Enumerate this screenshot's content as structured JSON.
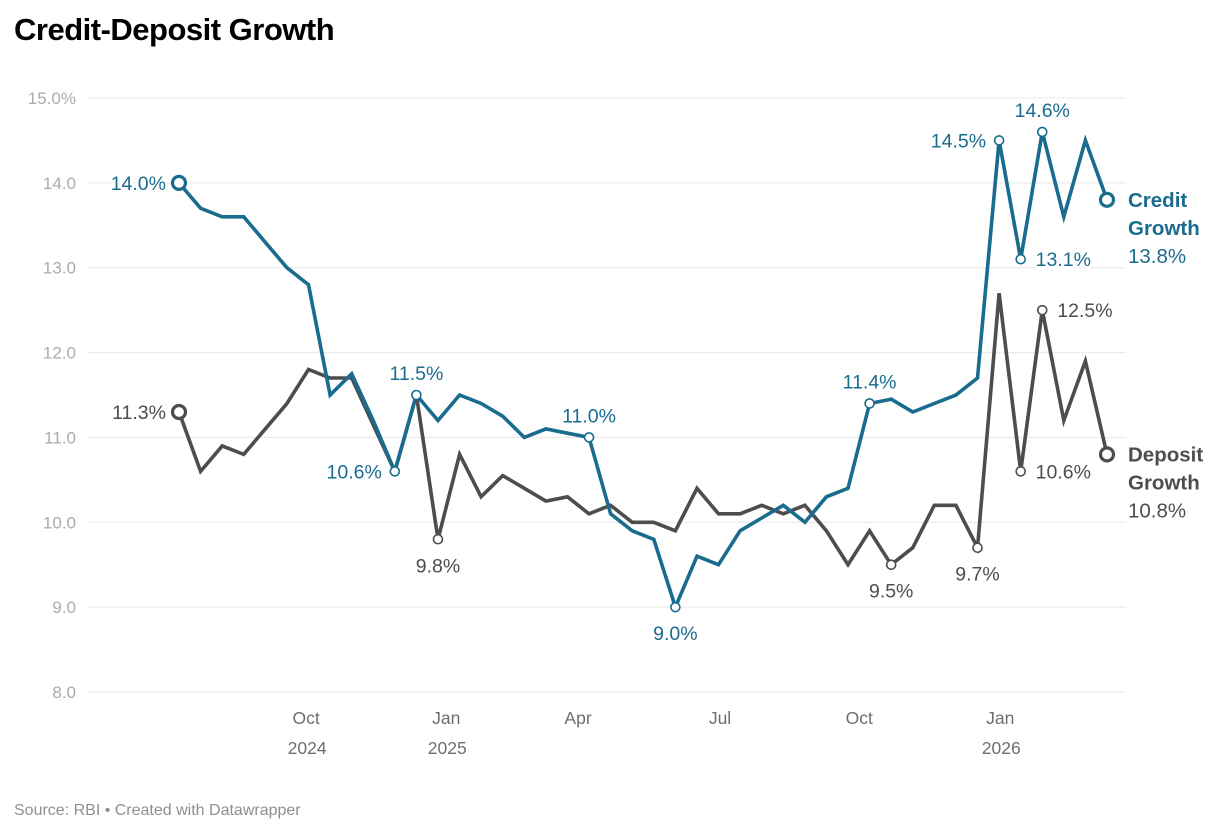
{
  "title": "Credit-Deposit Growth",
  "source_line": "Source: RBI • Created with Datawrapper",
  "colors": {
    "credit": "#1a6c8f",
    "deposit": "#4d4d4d",
    "grid": "#e7e7e7",
    "y_axis_text": "#ababab",
    "x_axis_text": "#6e6e6e",
    "title_text": "#000000",
    "footer_text": "#8f8f8f",
    "marker_fill": "#ffffff"
  },
  "chart_data": {
    "type": "line",
    "unit": "%",
    "grid": true,
    "y_axis": {
      "min": 8.0,
      "max": 15.0,
      "tick_step": 1.0,
      "tick_labels": [
        "8.0",
        "9.0",
        "10.0",
        "11.0",
        "12.0",
        "13.0",
        "14.0",
        "15.0%"
      ]
    },
    "x_axis": {
      "ticks": [
        {
          "month": "Oct",
          "year": "2024",
          "pos": 0.137
        },
        {
          "month": "Jan",
          "year": "2025",
          "pos": 0.288
        },
        {
          "month": "Apr",
          "year": "",
          "pos": 0.43
        },
        {
          "month": "Jul",
          "year": "",
          "pos": 0.583
        },
        {
          "month": "Oct",
          "year": "",
          "pos": 0.733
        },
        {
          "month": "Jan",
          "year": "2026",
          "pos": 0.885
        }
      ]
    },
    "series": [
      {
        "name": "Credit Growth",
        "label_lines": [
          "Credit",
          "Growth"
        ],
        "end_value": "13.8%",
        "color": "#1a6c8f",
        "values": [
          14.0,
          13.7,
          13.6,
          13.6,
          13.3,
          13.0,
          12.8,
          11.5,
          11.75,
          11.2,
          10.6,
          11.5,
          11.2,
          11.5,
          11.4,
          11.25,
          11.0,
          11.1,
          11.05,
          11.0,
          10.1,
          9.9,
          9.8,
          9.0,
          9.6,
          9.5,
          9.9,
          10.05,
          10.2,
          10.0,
          10.3,
          10.4,
          11.4,
          11.45,
          11.3,
          11.4,
          11.5,
          11.7,
          14.5,
          13.1,
          14.6,
          13.6,
          14.5,
          13.8
        ]
      },
      {
        "name": "Deposit Growth",
        "label_lines": [
          "Deposit",
          "Growth"
        ],
        "end_value": "10.8%",
        "color": "#4d4d4d",
        "values": [
          11.3,
          10.6,
          10.9,
          10.8,
          11.1,
          11.4,
          11.8,
          11.7,
          11.7,
          11.15,
          10.6,
          11.5,
          9.8,
          10.8,
          10.3,
          10.55,
          10.4,
          10.25,
          10.3,
          10.1,
          10.2,
          10.0,
          10.0,
          9.9,
          10.4,
          10.1,
          10.1,
          10.2,
          10.1,
          10.2,
          9.9,
          9.5,
          9.9,
          9.5,
          9.7,
          10.2,
          10.2,
          9.7,
          12.7,
          10.6,
          12.5,
          11.2,
          11.9,
          10.8
        ]
      }
    ],
    "annotations": [
      {
        "series": 0,
        "index": 0,
        "label": "14.0%",
        "placement": "left",
        "endpoint": true
      },
      {
        "series": 1,
        "index": 0,
        "label": "11.3%",
        "placement": "left",
        "endpoint": true
      },
      {
        "series": 0,
        "index": 10,
        "label": "10.6%",
        "placement": "left"
      },
      {
        "series": 0,
        "index": 11,
        "label": "11.5%",
        "placement": "above"
      },
      {
        "series": 1,
        "index": 12,
        "label": "9.8%",
        "placement": "below"
      },
      {
        "series": 0,
        "index": 19,
        "label": "11.0%",
        "placement": "above"
      },
      {
        "series": 0,
        "index": 23,
        "label": "9.0%",
        "placement": "below"
      },
      {
        "series": 0,
        "index": 32,
        "label": "11.4%",
        "placement": "above"
      },
      {
        "series": 1,
        "index": 33,
        "label": "9.5%",
        "placement": "below"
      },
      {
        "series": 1,
        "index": 37,
        "label": "9.7%",
        "placement": "below"
      },
      {
        "series": 0,
        "index": 38,
        "label": "14.5%",
        "placement": "left"
      },
      {
        "series": 0,
        "index": 39,
        "label": "13.1%",
        "placement": "right"
      },
      {
        "series": 0,
        "index": 40,
        "label": "14.6%",
        "placement": "above"
      },
      {
        "series": 1,
        "index": 39,
        "label": "10.6%",
        "placement": "right"
      },
      {
        "series": 1,
        "index": 40,
        "label": "12.5%",
        "placement": "right"
      },
      {
        "series": 0,
        "index": 43,
        "label": "",
        "placement": "end",
        "endpoint": true
      },
      {
        "series": 1,
        "index": 43,
        "label": "",
        "placement": "end",
        "endpoint": true
      }
    ]
  }
}
